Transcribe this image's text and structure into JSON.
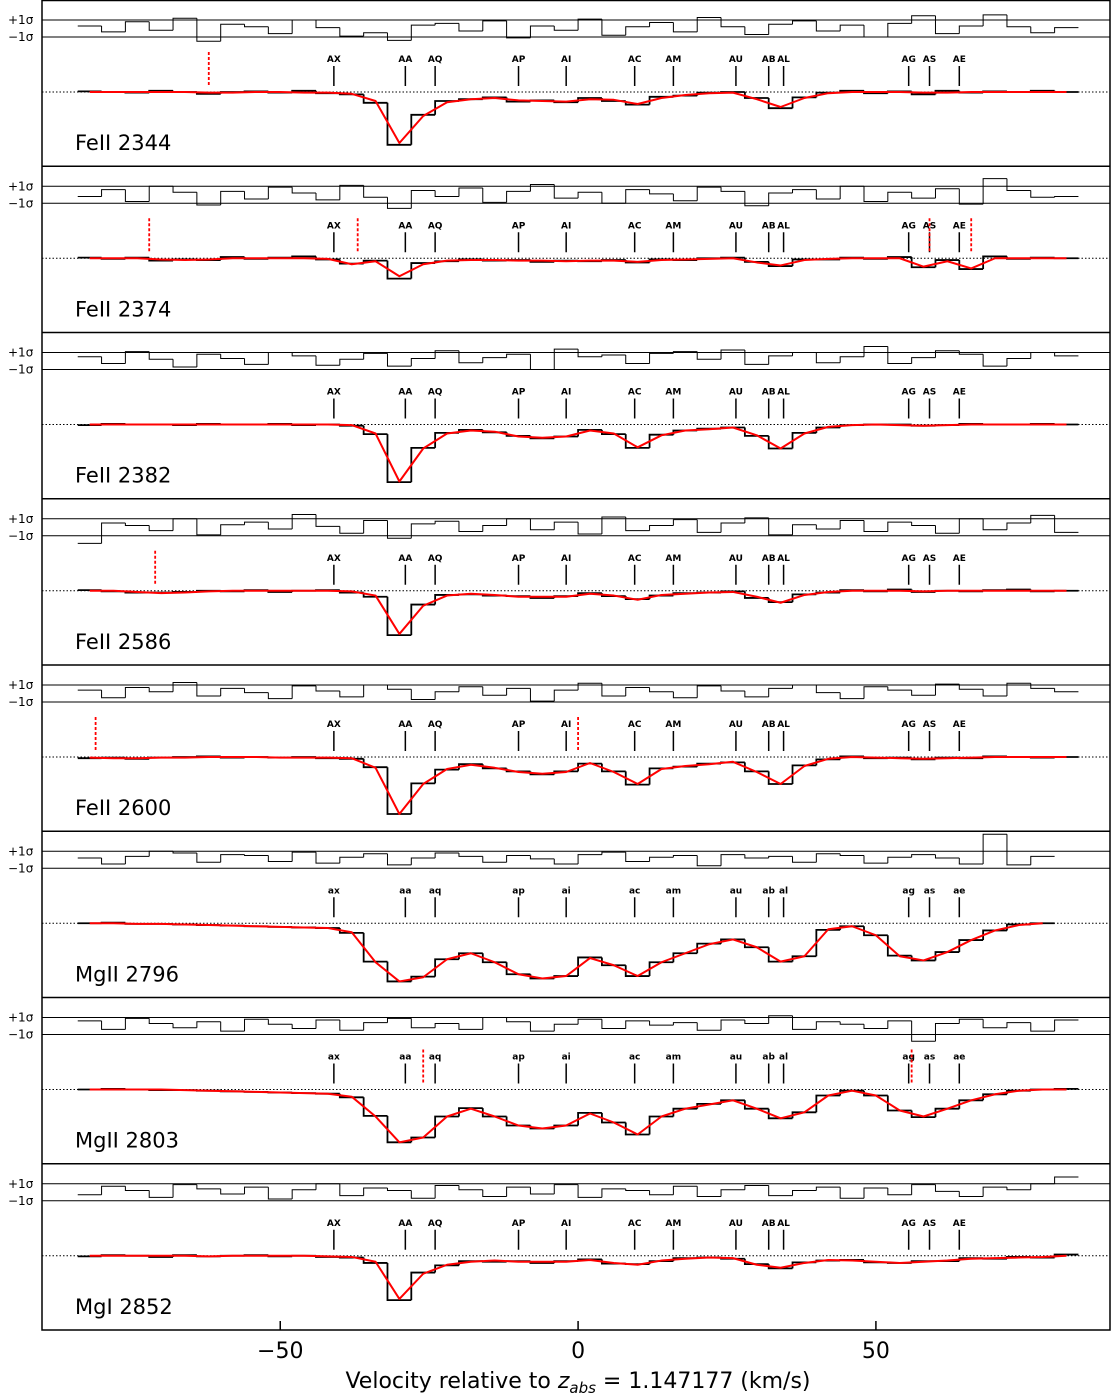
{
  "chart_data": {
    "type": "spectrum",
    "xlabel": "Velocity relative to",
    "xlabel_var": "z",
    "xlabel_sub": "abs",
    "xlabel_rest": " = 1.147177 (km/s)",
    "xlim": [
      -90,
      89.3
    ],
    "xticks": [
      {
        "value": -50,
        "label": "−50"
      },
      0,
      50
    ],
    "ylim": [
      0,
      1
    ],
    "continuum": 1,
    "sigma_ticks": [
      {
        "value": 1,
        "label": "+1σ"
      },
      {
        "value": -1,
        "label": "−1σ"
      }
    ],
    "data_color": "#000000",
    "model_color": "#ff0000",
    "blend_color": "#ff0000",
    "component_velocities": [
      -41,
      -29,
      -24,
      -10,
      -2,
      9.5,
      16,
      26.5,
      32,
      34.5,
      55.5,
      59,
      64
    ],
    "component_names": {
      "upper": [
        "AX",
        "AA",
        "AQ",
        "AP",
        "AI",
        "AC",
        "AM",
        "AU",
        "AB",
        "AL",
        "AG",
        "AS",
        "AE"
      ],
      "lower": [
        "ax",
        "aa",
        "aq",
        "ap",
        "ai",
        "ac",
        "am",
        "au",
        "ab",
        "al",
        "ag",
        "as",
        "ae"
      ]
    },
    "x": [
      -82,
      -78,
      -74,
      -70,
      -66,
      -62,
      -58,
      -54,
      -50,
      -46,
      -42,
      -38,
      -34,
      -30,
      -26,
      -22,
      -18,
      -14,
      -10,
      -6,
      -2,
      2,
      6,
      10,
      14,
      18,
      22,
      26,
      30,
      34,
      38,
      42,
      46,
      50,
      54,
      58,
      62,
      66,
      70,
      74,
      78,
      82
    ],
    "panels": [
      {
        "label": "FeII 2344",
        "case": "upper",
        "blends": [
          -62
        ],
        "model": [
          1,
          1,
          1,
          1,
          1,
          0.99,
          0.99,
          1,
          1,
          0.99,
          0.99,
          0.97,
          0.85,
          0.15,
          0.6,
          0.83,
          0.88,
          0.9,
          0.86,
          0.85,
          0.84,
          0.88,
          0.87,
          0.8,
          0.9,
          0.95,
          0.98,
          0.99,
          0.88,
          0.75,
          0.9,
          0.98,
          1,
          1,
          1,
          0.99,
          0.99,
          1,
          1,
          1,
          1,
          1
        ],
        "flux": [
          1.01,
          1,
          0.99,
          1.02,
          1,
          0.97,
          1,
          1.01,
          0.99,
          1.02,
          0.98,
          0.96,
          0.82,
          0.12,
          0.62,
          0.85,
          0.88,
          0.91,
          0.84,
          0.86,
          0.83,
          0.9,
          0.85,
          0.79,
          0.92,
          0.94,
          0.99,
          1,
          0.9,
          0.73,
          0.91,
          0.99,
          1.02,
          0.98,
          1.01,
          0.96,
          1.02,
          0.99,
          1.01,
          1,
          1.02,
          1
        ],
        "residual": [
          0.3,
          -0.4,
          0.8,
          -0.2,
          1.2,
          -1.5,
          0.5,
          0.2,
          -0.6,
          1,
          0.1,
          -0.9,
          -0.5,
          -1.4,
          0.4,
          0.6,
          -0.3,
          0.9,
          -1.1,
          0.3,
          -0.2,
          1.1,
          -0.8,
          0.2,
          0.7,
          -0.4,
          1.3,
          0.2,
          -0.7,
          0.5,
          0.9,
          -0.3,
          0.4,
          -1,
          0.6,
          1.5,
          -0.6,
          0.3,
          1.6,
          0.2,
          -0.5,
          0.1
        ]
      },
      {
        "label": "FeII 2374",
        "case": "upper",
        "blends": [
          -72,
          -37,
          59,
          66
        ],
        "model": [
          1,
          1,
          1,
          0.98,
          0.97,
          0.98,
          1,
          1,
          1,
          1,
          0.99,
          0.9,
          0.95,
          0.7,
          0.9,
          0.96,
          0.97,
          0.97,
          0.96,
          0.96,
          0.95,
          0.96,
          0.96,
          0.94,
          0.97,
          0.98,
          0.99,
          1,
          0.93,
          0.88,
          0.97,
          0.99,
          1,
          1,
          1,
          0.86,
          0.95,
          0.83,
          1,
          1,
          1,
          1
        ],
        "flux": [
          1.01,
          0.99,
          1.01,
          0.96,
          0.98,
          0.97,
          1.02,
          0.99,
          1.01,
          1.03,
          0.98,
          0.91,
          0.96,
          0.66,
          0.92,
          0.95,
          0.98,
          0.96,
          0.97,
          0.94,
          0.96,
          0.95,
          0.97,
          0.93,
          0.98,
          0.97,
          1,
          1.01,
          0.94,
          0.87,
          0.98,
          0.98,
          1.01,
          0.99,
          1.02,
          0.85,
          0.97,
          0.82,
          1.03,
          0.99,
          1.01,
          1
        ],
        "residual": [
          -0.2,
          0.6,
          -0.8,
          1,
          0.3,
          -1.2,
          0.4,
          -0.5,
          0.9,
          0.2,
          -0.6,
          1.1,
          -0.3,
          -1.6,
          0.5,
          -0.2,
          0.8,
          -0.9,
          0.4,
          1.2,
          -0.4,
          0.3,
          -1,
          0.6,
          0.1,
          -0.7,
          0.9,
          0.4,
          -1.3,
          0.2,
          0.6,
          -0.5,
          1,
          -0.8,
          0.3,
          -0.4,
          0.7,
          -1.1,
          1.9,
          0.5,
          -0.3,
          -0.2
        ]
      },
      {
        "label": "FeII 2382",
        "case": "upper",
        "blends": [],
        "model": [
          1,
          1,
          1,
          1,
          1,
          1,
          1,
          1,
          1,
          1,
          1,
          0.99,
          0.85,
          0.05,
          0.6,
          0.85,
          0.9,
          0.88,
          0.8,
          0.78,
          0.8,
          0.9,
          0.85,
          0.62,
          0.82,
          0.9,
          0.92,
          0.95,
          0.82,
          0.6,
          0.85,
          0.96,
          0.99,
          1,
          0.99,
          0.98,
          0.99,
          1,
          1,
          1,
          1,
          1
        ],
        "flux": [
          0.99,
          1.01,
          1,
          1,
          0.99,
          1.01,
          1,
          1,
          1.01,
          0.99,
          1,
          0.98,
          0.84,
          0.04,
          0.61,
          0.86,
          0.91,
          0.87,
          0.81,
          0.77,
          0.8,
          0.91,
          0.84,
          0.61,
          0.83,
          0.9,
          0.93,
          0.95,
          0.81,
          0.6,
          0.86,
          0.95,
          0.99,
          1,
          1,
          0.98,
          0.99,
          1.01,
          1,
          1,
          1.01,
          1
        ],
        "residual": [
          0.5,
          -0.3,
          1.1,
          0.2,
          -0.7,
          0.8,
          0.3,
          -0.4,
          1,
          0.6,
          -0.5,
          0.2,
          0.9,
          -0.6,
          0.3,
          1.2,
          -0.2,
          0.4,
          0.8,
          -1,
          1.4,
          0.5,
          0.7,
          -0.3,
          0.9,
          1.1,
          0.2,
          1.3,
          -0.4,
          0.6,
          1,
          -0.2,
          0.5,
          1.7,
          -0.3,
          0.4,
          1.2,
          0.8,
          -0.6,
          0.3,
          1,
          0.6
        ]
      },
      {
        "label": "FeII 2586",
        "case": "upper",
        "blends": [
          -71
        ],
        "model": [
          1,
          1,
          0.98,
          0.96,
          0.97,
          0.99,
          1,
          1,
          1,
          1,
          1,
          0.99,
          0.92,
          0.28,
          0.75,
          0.92,
          0.95,
          0.93,
          0.9,
          0.9,
          0.9,
          0.95,
          0.92,
          0.85,
          0.93,
          0.95,
          0.97,
          0.98,
          0.9,
          0.8,
          0.93,
          0.98,
          1,
          1,
          1,
          0.99,
          1,
          1,
          1,
          1,
          1,
          1
        ],
        "flux": [
          1.01,
          0.99,
          0.97,
          0.97,
          0.98,
          1,
          0.99,
          1.01,
          0.98,
          1,
          1.01,
          0.97,
          0.9,
          0.26,
          0.77,
          0.93,
          0.94,
          0.92,
          0.91,
          0.88,
          0.91,
          0.96,
          0.91,
          0.86,
          0.92,
          0.96,
          0.97,
          0.99,
          0.88,
          0.81,
          0.94,
          0.97,
          1.01,
          0.99,
          1.02,
          0.98,
          1,
          0.99,
          1.01,
          1.02,
          0.99,
          1
        ],
        "residual": [
          -1.9,
          0.5,
          0.2,
          -0.4,
          1,
          -0.9,
          0.3,
          0.6,
          -0.2,
          1.5,
          0.1,
          -0.7,
          0.8,
          -1.3,
          0.4,
          0.7,
          -0.5,
          0.2,
          1,
          -0.3,
          0.6,
          -0.8,
          1.2,
          -0.4,
          0.2,
          0.9,
          -0.6,
          0.5,
          1.1,
          -0.9,
          0.3,
          -0.2,
          0.8,
          -0.5,
          0.6,
          0.2,
          -0.7,
          1,
          -0.3,
          0.5,
          1.4,
          -0.6
        ]
      },
      {
        "label": "FeII 2600",
        "case": "upper",
        "blends": [
          -81,
          0
        ],
        "model": [
          0.99,
          0.98,
          0.98,
          0.99,
          0.99,
          1,
          1,
          1,
          0.99,
          0.99,
          0.99,
          0.98,
          0.82,
          0.05,
          0.55,
          0.8,
          0.87,
          0.82,
          0.75,
          0.72,
          0.75,
          0.9,
          0.75,
          0.55,
          0.8,
          0.85,
          0.88,
          0.92,
          0.75,
          0.55,
          0.85,
          0.97,
          1,
          0.99,
          0.98,
          0.97,
          0.98,
          0.99,
          1,
          1,
          1,
          1
        ],
        "flux": [
          0.98,
          0.99,
          0.97,
          0.99,
          1,
          1.01,
          0.99,
          1,
          0.99,
          1,
          0.98,
          0.97,
          0.83,
          0.05,
          0.56,
          0.79,
          0.88,
          0.81,
          0.76,
          0.71,
          0.76,
          0.89,
          0.76,
          0.54,
          0.81,
          0.84,
          0.89,
          0.91,
          0.76,
          0.55,
          0.86,
          0.96,
          1.01,
          0.98,
          0.99,
          0.96,
          0.99,
          0.98,
          1.01,
          1,
          0.99,
          1
        ],
        "residual": [
          0.4,
          -0.5,
          0.7,
          0.2,
          1.3,
          -0.3,
          0.6,
          0.1,
          -0.6,
          0.9,
          0.3,
          -0.4,
          1,
          0.5,
          -0.7,
          0.2,
          0.8,
          -0.2,
          0.6,
          -0.9,
          0.4,
          1.2,
          -0.3,
          0.7,
          0.2,
          -0.5,
          0.9,
          0.3,
          -0.4,
          0.6,
          1,
          0.1,
          -0.6,
          0.8,
          0.4,
          -0.2,
          1.1,
          0.5,
          -0.3,
          1.2,
          0.6,
          0.2
        ]
      },
      {
        "label": "MgII 2796",
        "case": "lower",
        "blends": [],
        "model": [
          1,
          1,
          0.99,
          0.99,
          0.98,
          0.97,
          0.96,
          0.95,
          0.94,
          0.93,
          0.92,
          0.85,
          0.35,
          0.03,
          0.1,
          0.4,
          0.5,
          0.35,
          0.15,
          0.08,
          0.12,
          0.42,
          0.3,
          0.12,
          0.35,
          0.5,
          0.65,
          0.73,
          0.6,
          0.36,
          0.45,
          0.9,
          0.95,
          0.8,
          0.45,
          0.38,
          0.52,
          0.72,
          0.88,
          0.97,
          1,
          null
        ],
        "flux": [
          1,
          1.01,
          0.99,
          0.99,
          0.98,
          0.97,
          0.96,
          0.95,
          0.94,
          0.93,
          0.92,
          0.84,
          0.36,
          0.03,
          0.11,
          0.4,
          0.5,
          0.35,
          0.15,
          0.08,
          0.12,
          0.43,
          0.3,
          0.12,
          0.35,
          0.5,
          0.66,
          0.73,
          0.6,
          0.36,
          0.45,
          0.89,
          0.95,
          0.8,
          0.46,
          0.38,
          0.52,
          0.72,
          0.88,
          0.98,
          1,
          null
        ],
        "residual": [
          0.2,
          -0.5,
          0.4,
          1,
          0.8,
          -0.3,
          0.6,
          0.5,
          -0.2,
          0.9,
          -0.4,
          0.3,
          0.7,
          -0.6,
          0.2,
          0.8,
          0.4,
          -0.3,
          0.5,
          0.1,
          -0.5,
          0.6,
          0.9,
          -0.2,
          0.3,
          0.5,
          -0.7,
          0.6,
          0.2,
          0.4,
          -0.3,
          0.7,
          0.5,
          -0.4,
          0.3,
          0.6,
          0.2,
          -0.5,
          3,
          -0.6,
          0.4,
          null
        ]
      },
      {
        "label": "MgII 2803",
        "case": "lower",
        "blends": [
          -26,
          56
        ],
        "model": [
          1,
          1,
          1,
          1,
          0.99,
          0.98,
          0.97,
          0.96,
          0.95,
          0.94,
          0.93,
          0.88,
          0.55,
          0.12,
          0.2,
          0.55,
          0.68,
          0.55,
          0.4,
          0.35,
          0.4,
          0.6,
          0.45,
          0.25,
          0.55,
          0.68,
          0.75,
          0.82,
          0.68,
          0.52,
          0.62,
          0.9,
          0.98,
          0.9,
          0.65,
          0.55,
          0.68,
          0.82,
          0.92,
          0.98,
          1,
          1
        ],
        "flux": [
          1,
          1.01,
          1,
          0.99,
          0.99,
          0.98,
          0.97,
          0.96,
          0.95,
          0.94,
          0.93,
          0.87,
          0.56,
          0.12,
          0.2,
          0.55,
          0.69,
          0.55,
          0.4,
          0.35,
          0.4,
          0.61,
          0.45,
          0.25,
          0.55,
          0.68,
          0.76,
          0.82,
          0.68,
          0.52,
          0.62,
          0.9,
          0.98,
          0.9,
          0.65,
          0.54,
          0.68,
          0.82,
          0.92,
          0.98,
          1,
          1.01
        ],
        "residual": [
          0.6,
          -0.4,
          0.9,
          0.3,
          -0.2,
          0.5,
          -0.6,
          0.8,
          0.2,
          -0.3,
          0.7,
          -0.5,
          0.4,
          0.9,
          -0.2,
          0.3,
          -0.4,
          1,
          0.5,
          -0.6,
          0.2,
          0.8,
          -0.3,
          0.6,
          0.1,
          0.4,
          -0.5,
          0.7,
          0.3,
          1.2,
          -0.4,
          0.5,
          0.2,
          -0.3,
          0.6,
          -1.8,
          0.3,
          0.8,
          -0.2,
          0.4,
          -0.6,
          0.7
        ]
      },
      {
        "label": "MgI 2852",
        "case": "upper",
        "blends": [],
        "model": [
          1,
          1,
          1,
          1,
          1,
          0.99,
          1,
          1,
          1,
          1,
          0.99,
          0.98,
          0.9,
          0.28,
          0.7,
          0.85,
          0.9,
          0.92,
          0.9,
          0.9,
          0.9,
          0.93,
          0.88,
          0.85,
          0.92,
          0.95,
          0.97,
          0.96,
          0.85,
          0.8,
          0.88,
          0.93,
          0.92,
          0.9,
          0.88,
          0.9,
          0.92,
          0.95,
          0.96,
          0.97,
          0.98,
          1
        ],
        "flux": [
          0.99,
          1.01,
          1,
          0.98,
          1.01,
          0.99,
          1,
          1.01,
          0.99,
          1,
          0.98,
          0.97,
          0.88,
          0.26,
          0.72,
          0.84,
          0.91,
          0.9,
          0.91,
          0.88,
          0.91,
          0.94,
          0.87,
          0.86,
          0.91,
          0.96,
          0.97,
          0.95,
          0.86,
          0.79,
          0.89,
          0.92,
          0.93,
          0.89,
          0.88,
          0.91,
          0.91,
          0.96,
          0.95,
          0.98,
          0.97,
          1.02
        ],
        "residual": [
          -0.3,
          0.7,
          0.2,
          -0.6,
          0.9,
          0.4,
          -0.2,
          0.6,
          -0.8,
          0.3,
          1,
          -0.4,
          0.5,
          0.2,
          -0.7,
          0.8,
          0.3,
          -0.5,
          0.6,
          -0.2,
          0.9,
          -0.6,
          0.4,
          0.2,
          -0.3,
          0.7,
          -0.5,
          0.3,
          0.8,
          -0.4,
          0.2,
          0.6,
          -0.7,
          0.5,
          -0.3,
          0.9,
          0.1,
          -0.5,
          0.6,
          0.3,
          1,
          1.8
        ]
      }
    ]
  }
}
